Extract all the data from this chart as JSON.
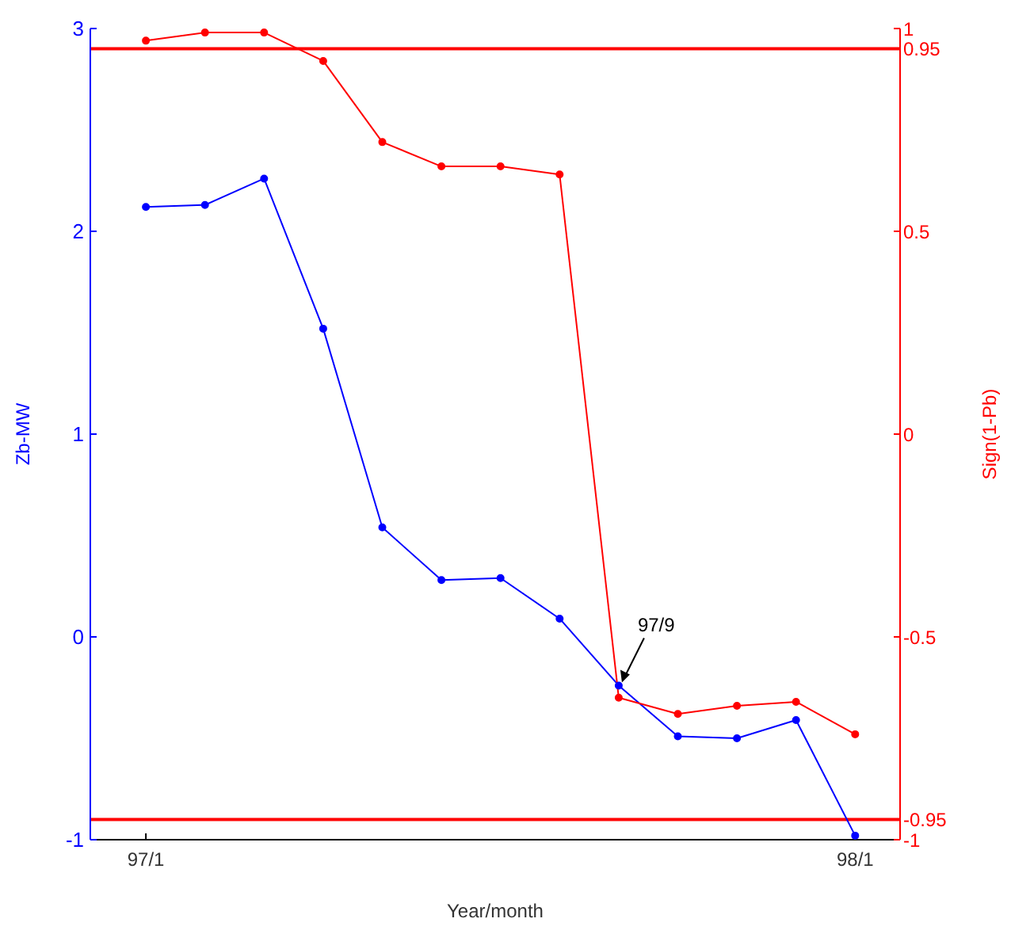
{
  "chart_data": {
    "type": "line",
    "xlabel": "Year/month",
    "ylabel": "Zb-MW",
    "y2label": "Sign(1-Pb)",
    "categories": [
      "97/1",
      null,
      null,
      null,
      null,
      null,
      null,
      null,
      null,
      null,
      null,
      null,
      "98/1"
    ],
    "ylim": [
      -1,
      3
    ],
    "yticks": [
      -1,
      0,
      1,
      2,
      3
    ],
    "y2lim": [
      -1,
      1
    ],
    "y2ticks": [
      -1,
      -0.95,
      -0.5,
      0,
      0.5,
      0.95,
      1
    ],
    "series": [
      {
        "color": "#0000ff",
        "values": [
          2.12,
          2.13,
          2.26,
          1.52,
          0.54,
          0.28,
          0.29,
          0.09,
          -0.24,
          -0.49,
          -0.5,
          -0.41,
          -0.98
        ]
      },
      {
        "color": "#ff0000",
        "axis": "y2",
        "values": [
          0.97,
          0.99,
          0.99,
          0.92,
          0.72,
          0.66,
          0.66,
          0.64,
          -0.65,
          -0.69,
          -0.67,
          -0.66,
          -0.74
        ]
      }
    ],
    "ref_lines": [
      {
        "axis": "y2",
        "value": 0.95,
        "color": "#ff0000"
      },
      {
        "axis": "y2",
        "value": -0.95,
        "color": "#ff0000"
      }
    ],
    "annotations": [
      "97/9"
    ],
    "marker": "circle"
  }
}
